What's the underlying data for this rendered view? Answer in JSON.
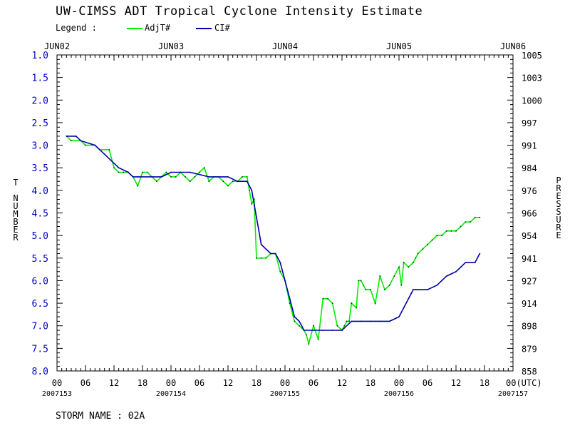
{
  "title": "UW-CIMSS ADT Tropical Cyclone Intensity Estimate",
  "legend": {
    "label": "Legend :",
    "items": [
      {
        "name": "AdjT#",
        "color": "#00ee00"
      },
      {
        "name": "CI#",
        "color": "#0000aa"
      }
    ]
  },
  "storm_name": "STORM NAME : 02A",
  "chart_data": {
    "type": "line",
    "ylabel": "T NUMBER",
    "ylabel_right": "PRESSURE",
    "x_unit_label": "00(UTC)",
    "ylim": [
      1.0,
      8.0
    ],
    "y_inverted": true,
    "y_ticks": [
      "1.0",
      "1.5",
      "2.0",
      "2.5",
      "3.0",
      "3.5",
      "4.0",
      "4.5",
      "5.0",
      "5.5",
      "6.0",
      "6.5",
      "7.0",
      "7.5",
      "8.0"
    ],
    "y_right_ticks": [
      "1005",
      "1003",
      "1000",
      "997",
      "991",
      "984",
      "976",
      "966",
      "954",
      "941",
      "927",
      "914",
      "898",
      "879",
      "858"
    ],
    "x_range_hours": [
      0,
      96
    ],
    "x_ticks": [
      "00",
      "06",
      "12",
      "18",
      "00",
      "06",
      "12",
      "18",
      "00",
      "06",
      "12",
      "18",
      "00",
      "06",
      "12",
      "18",
      "00(UTC)"
    ],
    "x_dates": [
      {
        "hour": 0,
        "label": "2007153"
      },
      {
        "hour": 24,
        "label": "2007154"
      },
      {
        "hour": 48,
        "label": "2007155"
      },
      {
        "hour": 72,
        "label": "2007156"
      },
      {
        "hour": 96,
        "label": "2007157"
      }
    ],
    "top_dates": [
      {
        "hour": 0,
        "label": "JUN02"
      },
      {
        "hour": 24,
        "label": "JUN03"
      },
      {
        "hour": 48,
        "label": "JUN04"
      },
      {
        "hour": 72,
        "label": "JUN05"
      },
      {
        "hour": 96,
        "label": "JUN06"
      }
    ],
    "series": [
      {
        "name": "AdjT#",
        "color": "#00ee00",
        "x": [
          2,
          3,
          5,
          6,
          8,
          9,
          11,
          12,
          13,
          14,
          15,
          16,
          17,
          18,
          19,
          20,
          21,
          22,
          23,
          24,
          25,
          26,
          27,
          28,
          29,
          30,
          31,
          32,
          33,
          34,
          35,
          36,
          37,
          38,
          39,
          40,
          40.5,
          41,
          41.5,
          42,
          43,
          44,
          45,
          46,
          47,
          48,
          49,
          50,
          51,
          52,
          52.5,
          53,
          54,
          55,
          56,
          57,
          58,
          59,
          60,
          60.5,
          61,
          61.5,
          62,
          63,
          63.5,
          64,
          64.5,
          65,
          66,
          67,
          68,
          69,
          70,
          71,
          72,
          72.5,
          73,
          74,
          75,
          75.5,
          76,
          77,
          78,
          79,
          80,
          81,
          82,
          83,
          84,
          85,
          86,
          87,
          88,
          89
        ],
        "y": [
          2.8,
          2.9,
          2.9,
          3.0,
          3.0,
          3.1,
          3.1,
          3.5,
          3.6,
          3.6,
          3.6,
          3.7,
          3.9,
          3.6,
          3.6,
          3.7,
          3.8,
          3.7,
          3.6,
          3.7,
          3.7,
          3.6,
          3.7,
          3.8,
          3.7,
          3.6,
          3.5,
          3.8,
          3.7,
          3.7,
          3.8,
          3.9,
          3.8,
          3.8,
          3.7,
          3.7,
          4.0,
          4.3,
          4.2,
          5.5,
          5.5,
          5.5,
          5.4,
          5.4,
          5.8,
          6.0,
          6.5,
          6.9,
          7.0,
          7.1,
          7.2,
          7.4,
          7.0,
          7.3,
          6.4,
          6.4,
          6.5,
          7.0,
          7.1,
          7.0,
          6.9,
          6.9,
          6.5,
          6.6,
          6.0,
          6.0,
          6.1,
          6.2,
          6.2,
          6.5,
          5.9,
          6.2,
          6.1,
          5.9,
          5.7,
          6.1,
          5.6,
          5.7,
          5.6,
          5.5,
          5.4,
          5.3,
          5.2,
          5.1,
          5.0,
          5.0,
          4.9,
          4.9,
          4.9,
          4.8,
          4.7,
          4.7,
          4.6,
          4.6
        ]
      },
      {
        "name": "CI#",
        "color": "#0000aa",
        "x": [
          2,
          4,
          5,
          8,
          9,
          10,
          12,
          13,
          15,
          16,
          17,
          20,
          22,
          24,
          28,
          32,
          36,
          38,
          40,
          41,
          42,
          43,
          45,
          46,
          47,
          48,
          49,
          50,
          51,
          52,
          54,
          56,
          58,
          60,
          62,
          64,
          66,
          68,
          70,
          72,
          73,
          74,
          75,
          76,
          78,
          80,
          81,
          82,
          84,
          85,
          86,
          88,
          89
        ],
        "y": [
          2.8,
          2.8,
          2.9,
          3.0,
          3.1,
          3.2,
          3.4,
          3.5,
          3.6,
          3.7,
          3.7,
          3.7,
          3.7,
          3.6,
          3.6,
          3.7,
          3.7,
          3.8,
          3.8,
          4.0,
          4.6,
          5.2,
          5.4,
          5.4,
          5.6,
          6.0,
          6.4,
          6.8,
          6.9,
          7.1,
          7.1,
          7.1,
          7.1,
          7.1,
          6.9,
          6.9,
          6.9,
          6.9,
          6.9,
          6.8,
          6.6,
          6.4,
          6.2,
          6.2,
          6.2,
          6.1,
          6.0,
          5.9,
          5.8,
          5.7,
          5.6,
          5.6,
          5.4
        ]
      }
    ]
  }
}
